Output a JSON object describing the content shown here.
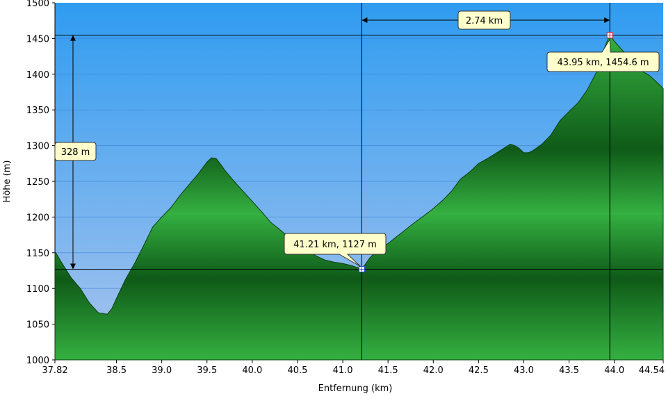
{
  "chart_data": {
    "type": "area",
    "xlabel": "Entfernung   (km)",
    "ylabel": "Höhe (m)",
    "xlim": [
      37.82,
      44.54
    ],
    "ylim": [
      1000,
      1500
    ],
    "x_ticks": [
      37.82,
      38.5,
      39.0,
      39.5,
      40.0,
      40.5,
      41.0,
      41.5,
      42.0,
      42.5,
      43.0,
      43.5,
      44.0,
      44.54
    ],
    "x_tick_labels": [
      "37.82",
      "38.5",
      "39.0",
      "39.5",
      "40.0",
      "40.5",
      "41.0",
      "41.5",
      "42.0",
      "42.5",
      "43.0",
      "43.5",
      "44.0",
      "44.54"
    ],
    "y_ticks": [
      1000,
      1050,
      1100,
      1150,
      1200,
      1250,
      1300,
      1350,
      1400,
      1450,
      1500
    ],
    "y_tick_labels": [
      "1000",
      "1050",
      "1100",
      "1150",
      "1200",
      "1250",
      "1300",
      "1350",
      "1400",
      "1450",
      "1500"
    ],
    "grid": true,
    "series": [
      {
        "x": [
          37.82,
          37.9,
          38.0,
          38.1,
          38.2,
          38.3,
          38.4,
          38.45,
          38.5,
          38.6,
          38.7,
          38.8,
          38.9,
          39.0,
          39.1,
          39.2,
          39.3,
          39.4,
          39.5,
          39.55,
          39.6,
          39.65,
          39.7,
          39.8,
          39.9,
          40.0,
          40.1,
          40.2,
          40.3,
          40.4,
          40.5,
          40.6,
          40.7,
          40.8,
          40.9,
          41.0,
          41.1,
          41.21,
          41.3,
          41.4,
          41.5,
          41.6,
          41.7,
          41.8,
          41.9,
          42.0,
          42.1,
          42.2,
          42.3,
          42.4,
          42.5,
          42.6,
          42.7,
          42.8,
          42.85,
          42.9,
          42.95,
          43.0,
          43.05,
          43.1,
          43.2,
          43.3,
          43.4,
          43.5,
          43.6,
          43.7,
          43.8,
          43.85,
          43.9,
          43.95,
          44.0,
          44.1,
          44.2,
          44.3,
          44.4,
          44.5,
          44.54
        ],
        "y": [
          1152,
          1135,
          1115,
          1100,
          1080,
          1066,
          1064,
          1072,
          1086,
          1113,
          1135,
          1160,
          1186,
          1200,
          1213,
          1230,
          1245,
          1260,
          1277,
          1283,
          1282,
          1274,
          1265,
          1250,
          1236,
          1222,
          1208,
          1193,
          1183,
          1172,
          1163,
          1155,
          1146,
          1140,
          1137,
          1135,
          1132,
          1127,
          1143,
          1155,
          1163,
          1173,
          1183,
          1193,
          1202,
          1212,
          1223,
          1236,
          1253,
          1263,
          1275,
          1282,
          1290,
          1298,
          1302,
          1300,
          1296,
          1290,
          1290,
          1293,
          1302,
          1315,
          1335,
          1348,
          1360,
          1378,
          1402,
          1420,
          1440,
          1454.6,
          1446,
          1432,
          1415,
          1405,
          1397,
          1385,
          1380
        ]
      }
    ],
    "annotations": {
      "point_a_label": "41.21 km, 1127 m",
      "point_a": {
        "x": 41.21,
        "y": 1127
      },
      "point_b_label": "43.95 km, 1454.6 m",
      "point_b": {
        "x": 43.95,
        "y": 1454.6
      },
      "distance_label": "2.74 km",
      "height_label": "328 m"
    },
    "colors": {
      "sky_top": "#2f9cf0",
      "sky_bottom": "#a9c4ee",
      "terrain_light": "#35b041",
      "terrain_dark": "#0f5a18",
      "callout_bg": "#ffffcc"
    }
  }
}
